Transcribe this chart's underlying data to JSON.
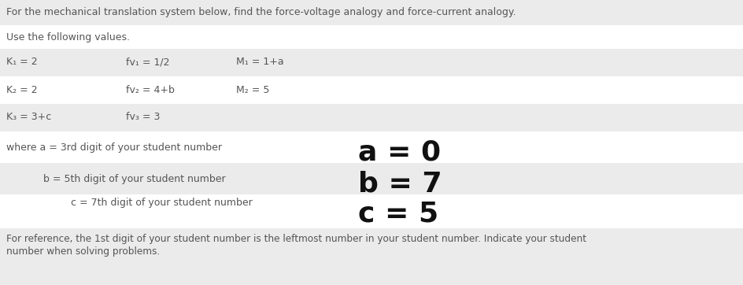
{
  "title_line": "For the mechanical translation system below, find the force-voltage analogy and force-current analogy.",
  "use_values_line": "Use the following values.",
  "row1_col1": "K₁ = 2",
  "row1_col2": "fv₁ = 1/2",
  "row1_col3": "M₁ = 1+a",
  "row2_col1": "K₂ = 2",
  "row2_col2": "fv₂ = 4+b",
  "row2_col3": "M₂ = 5",
  "row3_col1": "K₃ = 3+c",
  "row3_col2": "fv₃ = 3",
  "where_a": "where a = 3rd digit of your student number",
  "a_value": "a = 0",
  "where_b": "b = 5th digit of your student number",
  "b_value": "b = 7",
  "where_c": "c = 7th digit of your student number",
  "c_value": "c = 5",
  "footer_line1": "For reference, the 1st digit of your student number is the leftmost number in your student number. Indicate your student",
  "footer_line2": "number when solving problems.",
  "bg_color": "#ebebeb",
  "white_color": "#ffffff",
  "text_color": "#555555",
  "bold_color": "#111111",
  "small_fs": 9.0,
  "bold_fs": 26
}
